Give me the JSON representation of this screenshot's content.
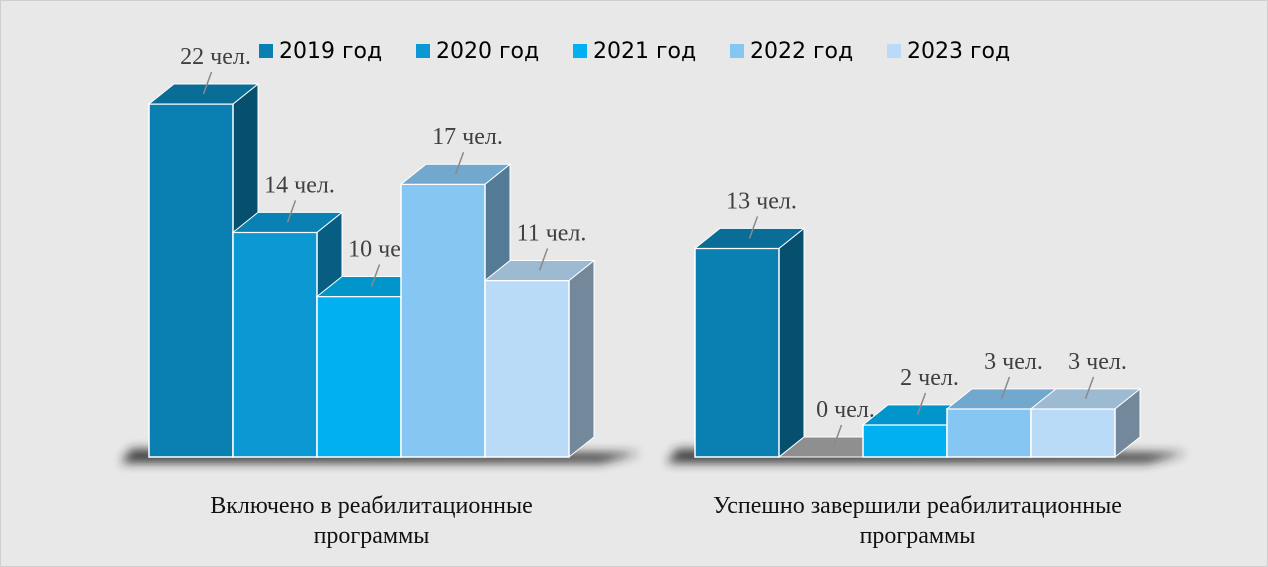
{
  "chart_data": {
    "type": "bar3d",
    "categories": [
      "Включено в реабилитационные программы",
      "Успешно завершили реабилитационные программы"
    ],
    "series": [
      {
        "name": "2019 год",
        "color": "#0a80b2",
        "values": [
          22,
          13
        ],
        "value_labels": [
          "22 чел.",
          "13 чел."
        ]
      },
      {
        "name": "2020 год",
        "color": "#0c98d2",
        "values": [
          14,
          0
        ],
        "value_labels": [
          "14 чел.",
          "0 чел."
        ]
      },
      {
        "name": "2021 год",
        "color": "#00b0f0",
        "values": [
          10,
          2
        ],
        "value_labels": [
          "10 чел.",
          "2 чел."
        ]
      },
      {
        "name": "2022 год",
        "color": "#86c6f2",
        "values": [
          17,
          3
        ],
        "value_labels": [
          "17 чел.",
          "3 чел."
        ]
      },
      {
        "name": "2023 год",
        "color": "#b9dbf8",
        "values": [
          11,
          3
        ],
        "value_labels": [
          "11 чел.",
          "3 чел."
        ]
      }
    ],
    "legend": "top"
  }
}
